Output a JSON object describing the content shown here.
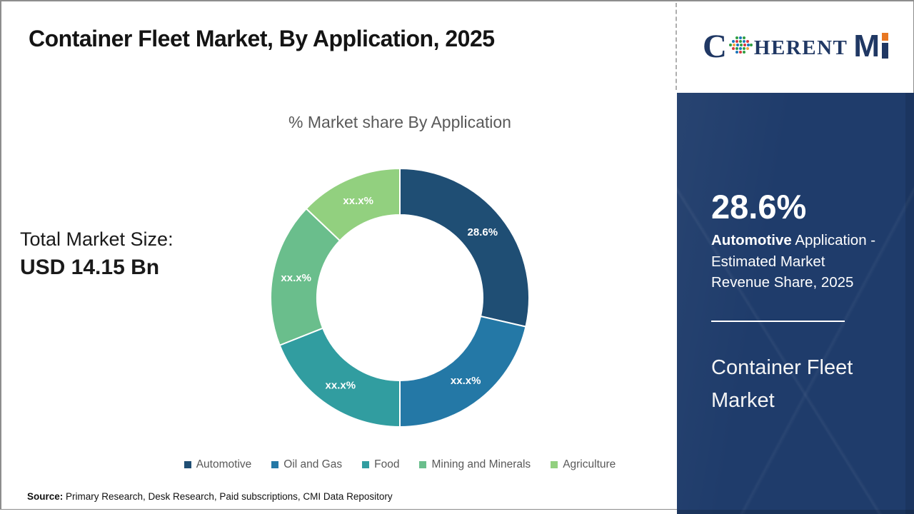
{
  "title": "Container Fleet Market, By Application, 2025",
  "brand": {
    "c": "C",
    "herent": "HERENT",
    "m": "M"
  },
  "left_stat": {
    "label": "Total Market Size:",
    "value": "USD 14.15 Bn"
  },
  "stat_panel": {
    "value": "28.6%",
    "desc_bold": "Automotive",
    "desc_line1_rest": " Application -",
    "desc_line2": "Estimated Market",
    "desc_line3": "Revenue Share, 2025",
    "title_line1": "Container Fleet",
    "title_line2": "Market"
  },
  "source": {
    "label": "Source:",
    "text": " Primary Research, Desk Research, Paid subscriptions, CMI Data Repository"
  },
  "colors": {
    "panel_bg": "#1f3c6b",
    "brand_navy": "#203864",
    "brand_orange": "#e87722",
    "text_gray": "#595959"
  },
  "chart_data": {
    "type": "pie",
    "subtype": "donut",
    "title": "% Market share By Application",
    "categories": [
      "Automotive",
      "Oil and Gas",
      "Food",
      "Mining and Minerals",
      "Agriculture"
    ],
    "values": [
      28.6,
      21.4,
      19.0,
      18.1,
      12.9
    ],
    "slice_labels": [
      "28.6%",
      "xx.x%",
      "xx.x%",
      "xx.x%",
      "xx.x%"
    ],
    "colors": [
      "#1f4e74",
      "#2478a6",
      "#319da0",
      "#6abe8c",
      "#92d07f"
    ],
    "start_angle_deg": 0,
    "clockwise": true,
    "inner_radius_ratio": 0.64,
    "legend_position": "bottom",
    "label_color": "#ffffff"
  }
}
